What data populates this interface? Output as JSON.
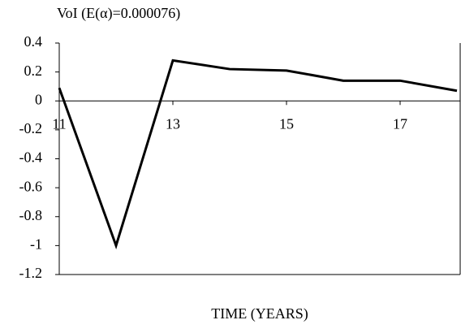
{
  "chart_data": {
    "type": "line",
    "title": "VoI (E(α)=0.000076)",
    "x_label": "TIME (YEARS)",
    "x": [
      11,
      12,
      13,
      14,
      15,
      16,
      17,
      18
    ],
    "series": [
      {
        "name": "VoI",
        "color": "#000000",
        "values": [
          0.09,
          -1.0,
          0.28,
          0.22,
          0.21,
          0.14,
          0.14,
          0.07
        ]
      }
    ],
    "xlim": [
      11,
      18
    ],
    "xticks": [
      11,
      13,
      15,
      17
    ],
    "ylim": [
      -1.2,
      0.4
    ],
    "yticks": [
      0.4,
      0.2,
      0,
      -0.2,
      -0.4,
      -0.6,
      -0.8,
      -1,
      -1.2
    ]
  }
}
